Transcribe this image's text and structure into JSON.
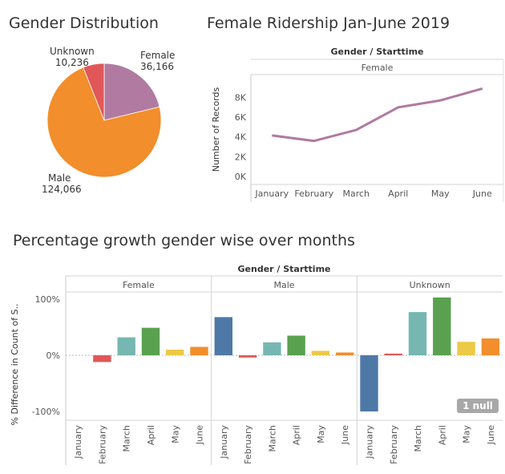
{
  "pie": {
    "title": "Gender Distribution",
    "chart_data": {
      "type": "pie",
      "slices": [
        {
          "label": "Female",
          "value": 36166,
          "value_label": "36,166",
          "color": "#b07aa1"
        },
        {
          "label": "Male",
          "value": 124066,
          "value_label": "124,066",
          "color": "#f28e2b"
        },
        {
          "label": "Unknown",
          "value": 10236,
          "value_label": "10,236",
          "color": "#e15759"
        }
      ]
    }
  },
  "line": {
    "title": "Female Ridership Jan-June 2019",
    "chart_data": {
      "type": "line",
      "header": "Gender / Starttime",
      "panel": "Female",
      "ylabel": "Number of Records",
      "x": [
        "January",
        "February",
        "March",
        "April",
        "May",
        "June"
      ],
      "values": [
        4150,
        3600,
        4700,
        7000,
        7700,
        8900
      ],
      "yticks": [
        {
          "v": 0,
          "label": "0K"
        },
        {
          "v": 2000,
          "label": "2K"
        },
        {
          "v": 4000,
          "label": "4K"
        },
        {
          "v": 6000,
          "label": "6K"
        },
        {
          "v": 8000,
          "label": "8K"
        }
      ],
      "ylim": [
        0,
        9500
      ],
      "color": "#b07aa1"
    }
  },
  "growth": {
    "title": "Percentage growth gender wise over months",
    "chart_data": {
      "type": "bar",
      "header": "Gender / Starttime",
      "ylabel": "% Difference in Count of S..",
      "ylim": [
        -100,
        100
      ],
      "yticks": [
        {
          "v": 100,
          "label": "100%"
        },
        {
          "v": 0,
          "label": "0%"
        },
        {
          "v": -100,
          "label": "-100%"
        }
      ],
      "categories": [
        "January",
        "February",
        "March",
        "April",
        "May",
        "June"
      ],
      "colors": [
        "#4e79a7",
        "#e15759",
        "#76b7b2",
        "#59a14f",
        "#edc948",
        "#f28e2b"
      ],
      "panels": [
        {
          "name": "Female",
          "values": [
            null,
            -12,
            32,
            49,
            10,
            15
          ]
        },
        {
          "name": "Male",
          "values": [
            68,
            -4,
            23,
            35,
            8,
            5
          ]
        },
        {
          "name": "Unknown",
          "values": [
            -100,
            3,
            77,
            103,
            24,
            30
          ]
        }
      ],
      "null_badge": "1 null"
    }
  }
}
